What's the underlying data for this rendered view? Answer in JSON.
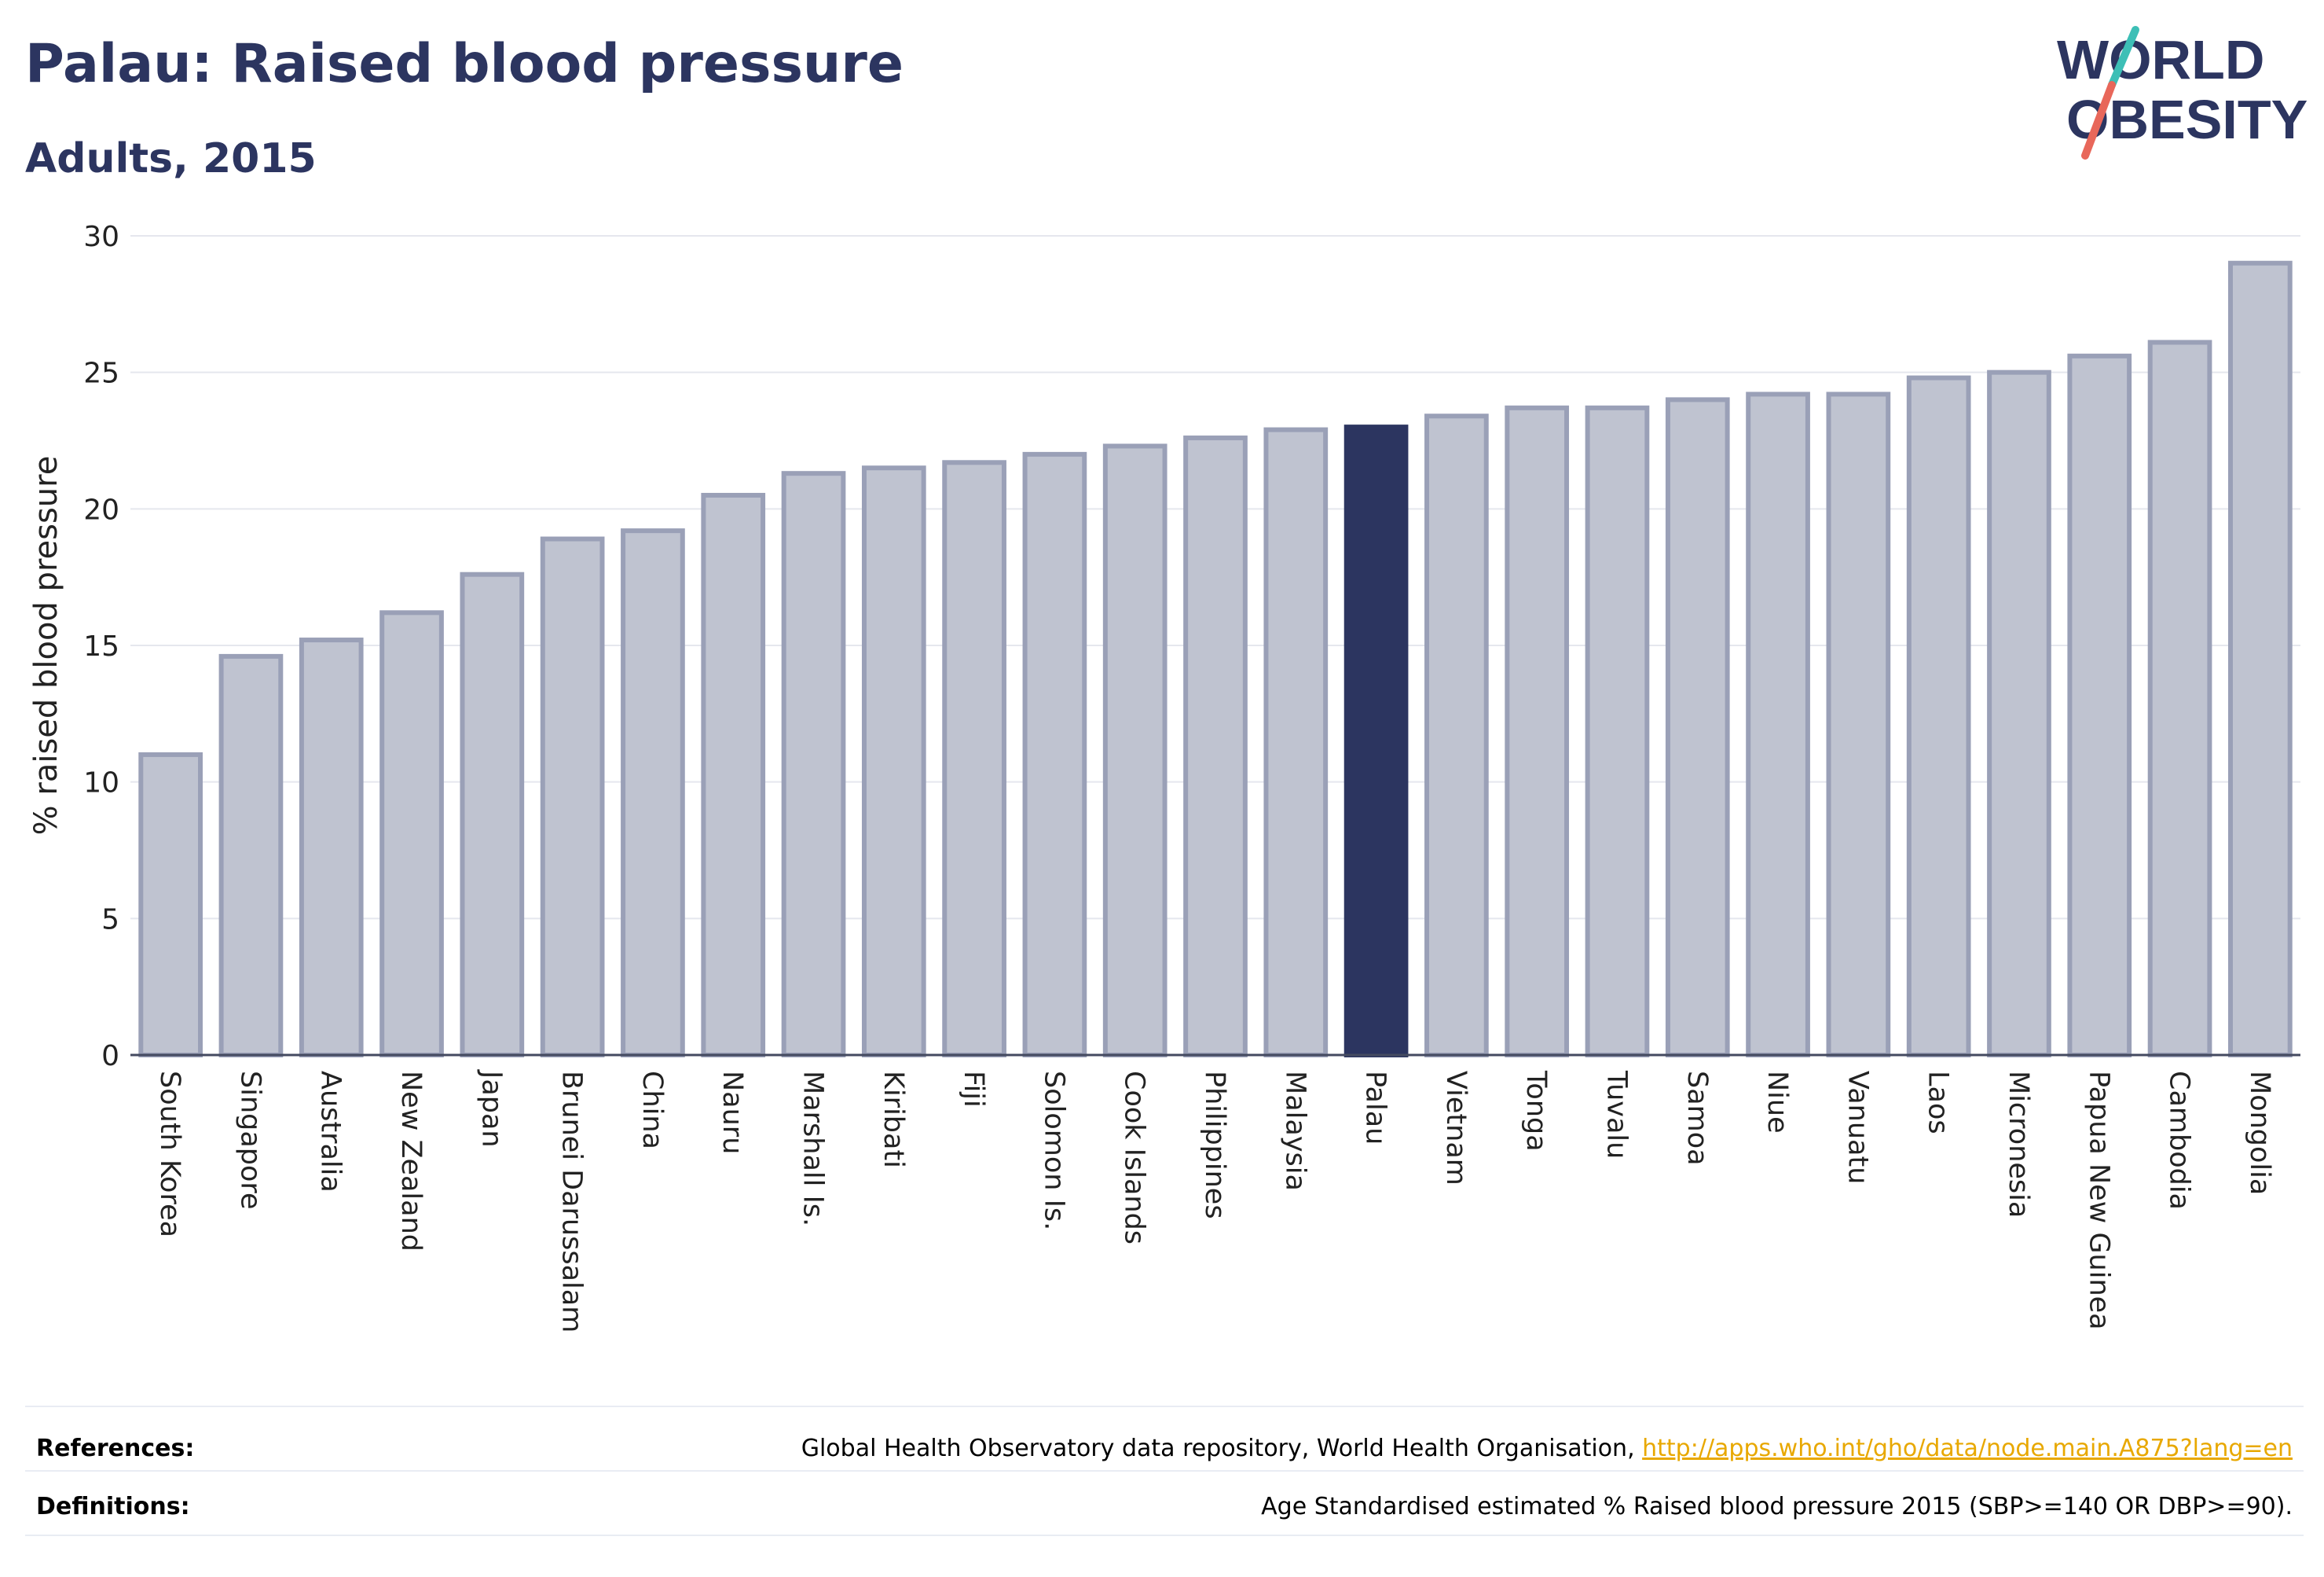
{
  "header": {
    "title": "Palau: Raised blood pressure",
    "subtitle": "Adults, 2015"
  },
  "logo": {
    "line1": "WORLD",
    "line2": "OBESITY"
  },
  "colors": {
    "highlight": "#2c3560",
    "bar": "#bfc3d0",
    "bar_edge": "#9aa0b7",
    "title": "#2c3560",
    "link": "#e8a800",
    "grid": "#e5e7ee"
  },
  "chart_data": {
    "type": "bar",
    "ylabel": "% raised blood pressure",
    "xlabel": "",
    "ylim": [
      0,
      30
    ],
    "yticks": [
      0,
      5,
      10,
      15,
      20,
      25,
      30
    ],
    "grid": true,
    "highlight": "Palau",
    "categories": [
      "South Korea",
      "Singapore",
      "Australia",
      "New Zealand",
      "Japan",
      "Brunei Darussalam",
      "China",
      "Nauru",
      "Marshall Is.",
      "Kiribati",
      "Fiji",
      "Solomon Is.",
      "Cook Islands",
      "Philippines",
      "Malaysia",
      "Palau",
      "Vietnam",
      "Tonga",
      "Tuvalu",
      "Samoa",
      "Niue",
      "Vanuatu",
      "Laos",
      "Micronesia",
      "Papua New Guinea",
      "Cambodia",
      "Mongolia"
    ],
    "values": [
      11.0,
      14.6,
      15.2,
      16.2,
      17.6,
      18.9,
      19.2,
      20.5,
      21.3,
      21.5,
      21.7,
      22.0,
      22.3,
      22.6,
      22.9,
      23.0,
      23.4,
      23.7,
      23.7,
      24.0,
      24.2,
      24.2,
      24.8,
      25.0,
      25.6,
      26.1,
      29.0
    ]
  },
  "footer": {
    "references_label": "References:",
    "references_text": "Global Health Observatory data repository, World Health Organisation, ",
    "references_link": "http://apps.who.int/gho/data/node.main.A875?lang=en",
    "definitions_label": "Definitions:",
    "definitions_text": "Age Standardised estimated % Raised blood pressure 2015 (SBP>=140 OR DBP>=90)."
  }
}
